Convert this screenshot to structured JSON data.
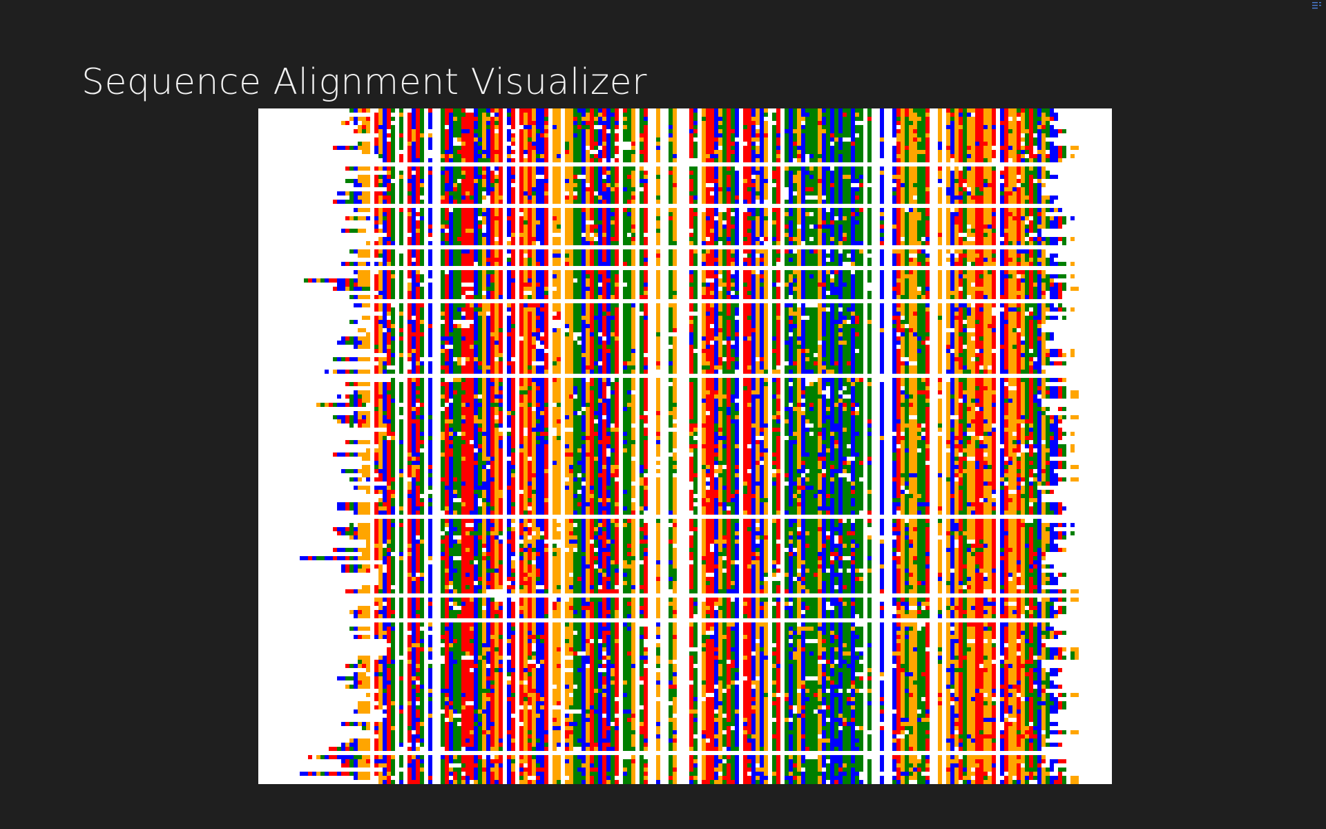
{
  "app": {
    "title": "Sequence Alignment Visualizer"
  },
  "alignment_view": {
    "icon": "alignment-matrix",
    "nucleotide_colors": {
      "A": "#00007f",
      "C": "#ff0000",
      "G": "#007f00",
      "T": "#ffa500",
      "gap": "#ffffff"
    },
    "background": "#ffffff"
  },
  "window": {
    "background": "#1f1f1f",
    "corner_icon": "list-icon"
  }
}
